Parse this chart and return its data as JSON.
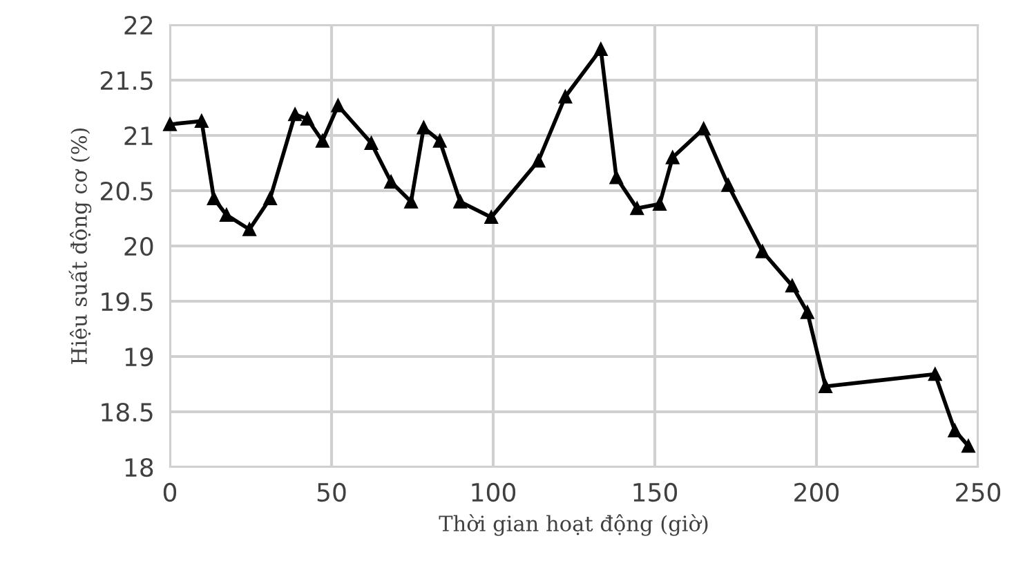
{
  "chart_data": {
    "type": "line",
    "xlabel": "Thời gian hoạt động (giờ)",
    "ylabel": "Hiệu suất động cơ (%)",
    "series": [
      {
        "color": "#000000",
        "x": [
          0,
          9.8,
          13.6,
          17.5,
          24.6,
          31,
          38.7,
          42.5,
          47.2,
          52,
          62.3,
          68.4,
          74.6,
          78.5,
          83.5,
          89.8,
          99.4,
          114,
          122.3,
          133.3,
          138.1,
          144.5,
          151.5,
          155.5,
          165.1,
          172.7,
          183.3,
          192.5,
          197.2,
          202.8,
          236.7,
          242.8,
          247
        ],
        "values": [
          21.1,
          21.13,
          20.43,
          20.28,
          20.15,
          20.43,
          21.19,
          21.15,
          20.95,
          21.27,
          20.93,
          20.58,
          20.4,
          21.07,
          20.95,
          20.4,
          20.26,
          20.77,
          21.35,
          21.78,
          20.62,
          20.34,
          20.38,
          20.8,
          21.06,
          20.55,
          19.95,
          19.64,
          19.4,
          18.73,
          18.84,
          18.33,
          18.19
        ]
      }
    ],
    "xlim": [
      0,
      250
    ],
    "xticks": [
      0,
      50,
      100,
      150,
      200,
      250
    ],
    "ylim": [
      18,
      22
    ],
    "yticks": [
      18,
      {
        "value": 18.5,
        "label": "18.5"
      },
      19,
      {
        "value": 19.5,
        "label": "19.5"
      },
      20,
      {
        "value": 20.5,
        "label": "20.5"
      },
      21,
      {
        "value": 21.5,
        "label": "21.5"
      },
      22
    ],
    "grid": true,
    "marker": "triangle",
    "line_style": "solid",
    "legend": false
  }
}
